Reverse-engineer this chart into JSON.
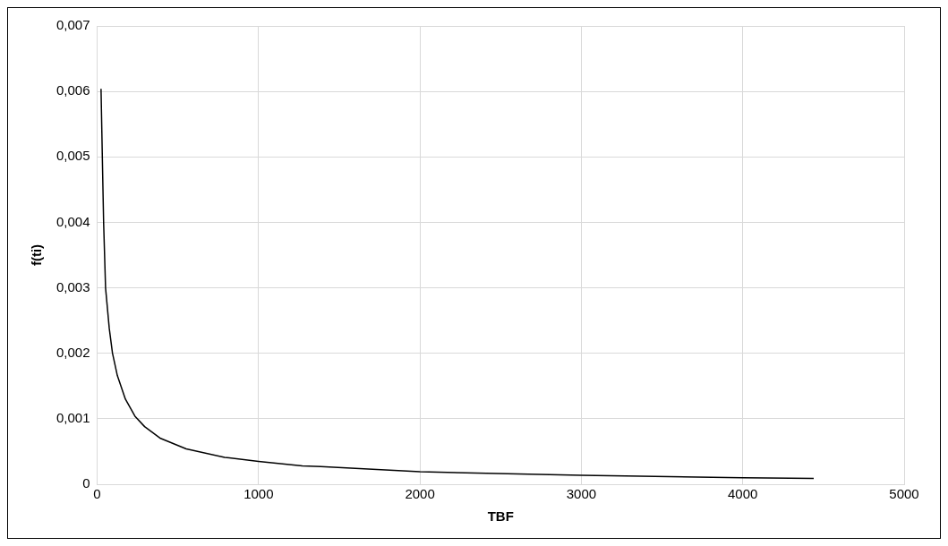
{
  "chart_data": {
    "type": "line",
    "xlabel": "TBF",
    "ylabel": "f(ti)",
    "series": [
      {
        "color": "#000000",
        "x": [
          24,
          32,
          40,
          52,
          75,
          95,
          125,
          175,
          234,
          294,
          393,
          552,
          790,
          1000,
          1271,
          1385,
          2000,
          3000,
          4000,
          4440
        ],
        "values": [
          0.00604,
          0.005,
          0.004,
          0.003,
          0.00238,
          0.002,
          0.00166,
          0.0013,
          0.00104,
          0.00088,
          0.0007,
          0.00054,
          0.00041,
          0.00035,
          0.00028,
          0.00027,
          0.00019,
          0.000136,
          0.0001,
          9e-05
        ]
      }
    ],
    "xlim": [
      0,
      5000
    ],
    "xticks": [
      0,
      1000,
      2000,
      3000,
      4000,
      5000
    ],
    "ylim": [
      0,
      0.007
    ],
    "yticks": [
      {
        "value": 0,
        "label": "0"
      },
      {
        "value": 0.001,
        "label": "0,001"
      },
      {
        "value": 0.002,
        "label": "0,002"
      },
      {
        "value": 0.003,
        "label": "0,003"
      },
      {
        "value": 0.004,
        "label": "0,004"
      },
      {
        "value": 0.005,
        "label": "0,005"
      },
      {
        "value": 0.006,
        "label": "0,006"
      },
      {
        "value": 0.007,
        "label": "0,007"
      }
    ],
    "grid": true,
    "legend": false,
    "marker": "none",
    "line_style": "solid"
  }
}
